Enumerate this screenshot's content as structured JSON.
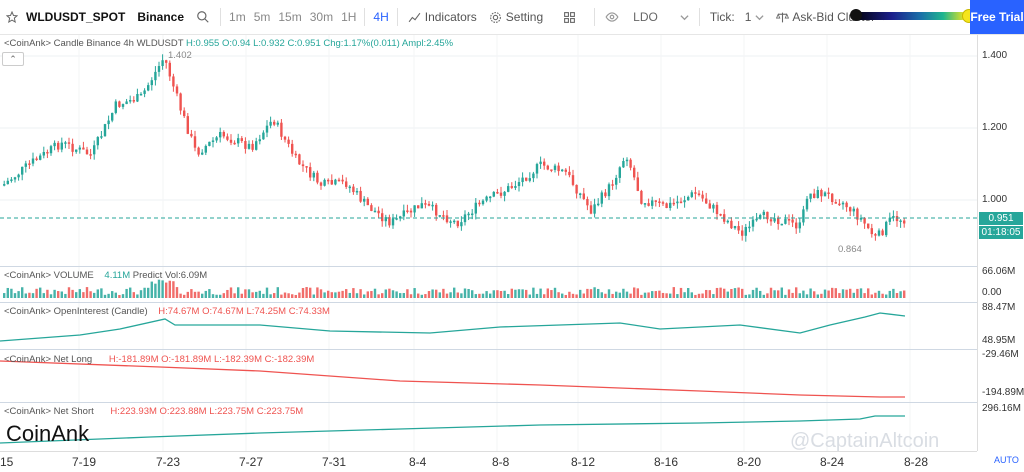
{
  "toolbar": {
    "symbol": "WLDUSDT_SPOT",
    "exchange": "Binance",
    "intervals": [
      "1m",
      "5m",
      "15m",
      "30m",
      "1H",
      "4H"
    ],
    "active_interval": "4H",
    "indicators": "Indicators",
    "setting": "Setting",
    "ldo": "LDO",
    "tick_label": "Tick:",
    "tick_value": "1",
    "ask_bid": "Ask-Bid Cluster",
    "free_trial": "Free Trial"
  },
  "main": {
    "legend_prefix": "<CoinAnk> Candle",
    "legend_source": "Binance 4h WLDUSDT",
    "legend_h": "H:0.955",
    "legend_o": "O:0.94",
    "legend_l": "L:0.932",
    "legend_c": "C:0.951",
    "legend_chg": "Chg:1.17%(0.011)",
    "legend_ampl": "Ampl:2.45%",
    "high_label": "1.402",
    "low_label": "0.864",
    "last_price": "0.951",
    "countdown": "01:18:05",
    "y_ticks": [
      "1.400",
      "1.200",
      "1.000"
    ]
  },
  "volume": {
    "prefix": "<CoinAnk> VOLUME",
    "value": "4.11M",
    "predict": "Predict Vol:6.09M",
    "y_top": "66.06M",
    "y_bottom": "0.00"
  },
  "open_interest": {
    "prefix": "<CoinAnk> OpenInterest (Candle)",
    "h": "H:74.67M",
    "o": "O:74.67M",
    "l": "L:74.25M",
    "c": "C:74.33M",
    "y_top": "88.47M",
    "y_bottom": "48.95M"
  },
  "net_long": {
    "prefix": "<CoinAnk> Net Long",
    "h": "H:-181.89M",
    "o": "O:-181.89M",
    "l": "L:-182.39M",
    "c": "C:-182.39M",
    "y_top": "-29.46M",
    "y_bottom": "-194.89M"
  },
  "net_short": {
    "prefix": "<CoinAnk> Net Short",
    "h": "H:223.93M",
    "o": "O:223.88M",
    "l": "L:223.75M",
    "c": "C:223.75M",
    "y_top": "296.16M"
  },
  "x_labels": [
    "15",
    "7-19",
    "7-23",
    "7-27",
    "7-31",
    "8-4",
    "8-8",
    "8-12",
    "8-16",
    "8-20",
    "8-24",
    "8-28"
  ],
  "watermark": "CoinAnk",
  "watermark2": "@CaptainAltcoin",
  "auto": "AUTO",
  "colors": {
    "up": "#26a69a",
    "down": "#ef5350",
    "accent": "#2962ff"
  }
}
